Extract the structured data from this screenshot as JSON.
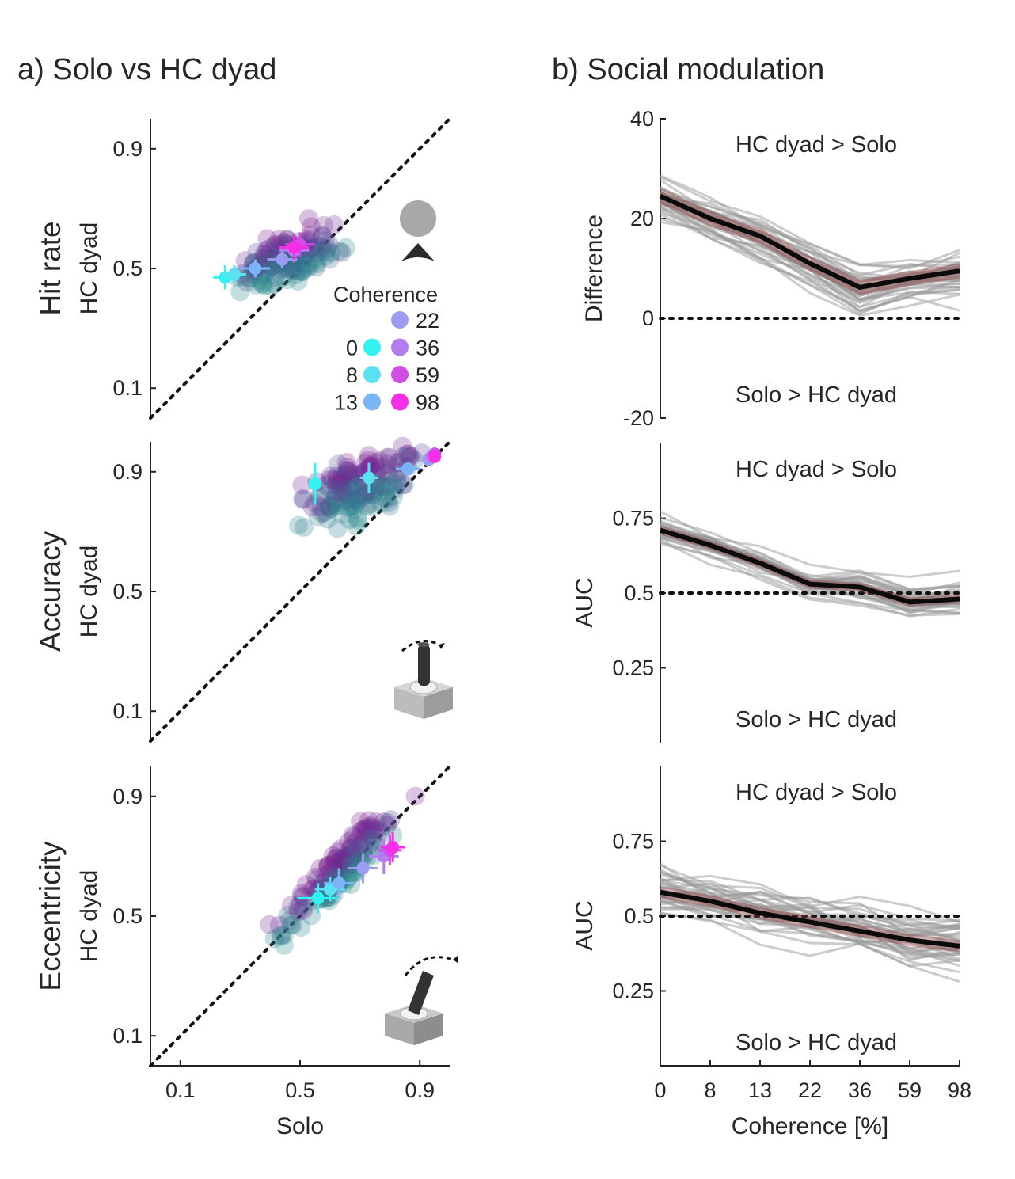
{
  "panels": {
    "a_title": "a) Solo vs HC dyad",
    "b_title": "b) Social modulation"
  },
  "scatter_common": {
    "ticks": [
      "0.1",
      "0.5",
      "0.9"
    ],
    "tick_values": [
      0.1,
      0.5,
      0.9
    ],
    "lim": [
      0,
      1
    ],
    "xlabel": "Solo",
    "ylabel_sub": "HC dyad",
    "legend_title": "Coherence",
    "legend_items": [
      {
        "label": "0",
        "color": "#33f2f2"
      },
      {
        "label": "8",
        "color": "#5ae2f2"
      },
      {
        "label": "13",
        "color": "#7ab4f7"
      },
      {
        "label": "22",
        "color": "#9b9bf0"
      },
      {
        "label": "36",
        "color": "#b47cf0"
      },
      {
        "label": "59",
        "color": "#d24ce6"
      },
      {
        "label": "98",
        "color": "#f72ee8"
      }
    ]
  },
  "line_common": {
    "x_categories": [
      "0",
      "8",
      "13",
      "22",
      "36",
      "59",
      "98"
    ],
    "xlabel": "Coherence [%]",
    "upper_label": "HC dyad > Solo",
    "lower_label": "Solo > HC dyad"
  },
  "chart_data": [
    {
      "type": "scatter",
      "row_label": "Hit rate",
      "xlabel": "Solo",
      "ylabel": "HC dyad",
      "xlim": [
        0,
        1
      ],
      "ylim": [
        0,
        1
      ],
      "identity_line": true,
      "cloud": {
        "cx": 0.46,
        "cy": 0.54,
        "spread_x": 0.19,
        "slope": 0.35,
        "noise": 0.06
      },
      "series": [
        {
          "name": "0",
          "x": 0.25,
          "y": 0.47,
          "xerr": 0.04,
          "yerr": 0.04
        },
        {
          "name": "8",
          "x": 0.28,
          "y": 0.48,
          "xerr": 0.04,
          "yerr": 0.03
        },
        {
          "name": "13",
          "x": 0.35,
          "y": 0.5,
          "xerr": 0.05,
          "yerr": 0.03
        },
        {
          "name": "22",
          "x": 0.44,
          "y": 0.53,
          "xerr": 0.05,
          "yerr": 0.03
        },
        {
          "name": "36",
          "x": 0.48,
          "y": 0.56,
          "xerr": 0.05,
          "yerr": 0.04
        },
        {
          "name": "59",
          "x": 0.5,
          "y": 0.58,
          "xerr": 0.05,
          "yerr": 0.04
        },
        {
          "name": "98",
          "x": 0.48,
          "y": 0.57,
          "xerr": 0.05,
          "yerr": 0.04
        }
      ]
    },
    {
      "type": "scatter",
      "row_label": "Accuracy",
      "xlabel": "Solo",
      "ylabel": "HC dyad",
      "xlim": [
        0,
        1
      ],
      "ylim": [
        0,
        1
      ],
      "identity_line": true,
      "cloud": {
        "cx": 0.7,
        "cy": 0.85,
        "spread_x": 0.22,
        "slope": 0.25,
        "noise": 0.09
      },
      "series": [
        {
          "name": "0",
          "x": 0.55,
          "y": 0.86,
          "xerr": 0.02,
          "yerr": 0.07
        },
        {
          "name": "8",
          "x": 0.73,
          "y": 0.88,
          "xerr": 0.03,
          "yerr": 0.05
        },
        {
          "name": "13",
          "x": 0.86,
          "y": 0.91,
          "xerr": 0.04,
          "yerr": 0.02
        },
        {
          "name": "22",
          "x": 0.93,
          "y": 0.94,
          "xerr": 0.02,
          "yerr": 0.01
        },
        {
          "name": "36",
          "x": 0.94,
          "y": 0.95,
          "xerr": 0.01,
          "yerr": 0.01
        },
        {
          "name": "59",
          "x": 0.95,
          "y": 0.96,
          "xerr": 0.01,
          "yerr": 0.01
        },
        {
          "name": "98",
          "x": 0.95,
          "y": 0.95,
          "xerr": 0.01,
          "yerr": 0.01
        }
      ]
    },
    {
      "type": "scatter",
      "row_label": "Eccentricity",
      "xlabel": "Solo",
      "ylabel": "HC dyad",
      "xlim": [
        0,
        1
      ],
      "ylim": [
        0,
        1
      ],
      "identity_line": true,
      "cloud": {
        "cx": 0.64,
        "cy": 0.66,
        "spread_x": 0.24,
        "slope": 0.95,
        "noise": 0.05
      },
      "series": [
        {
          "name": "0",
          "x": 0.56,
          "y": 0.56,
          "xerr": 0.07,
          "yerr": 0.05
        },
        {
          "name": "8",
          "x": 0.6,
          "y": 0.59,
          "xerr": 0.05,
          "yerr": 0.04
        },
        {
          "name": "13",
          "x": 0.63,
          "y": 0.61,
          "xerr": 0.05,
          "yerr": 0.05
        },
        {
          "name": "22",
          "x": 0.71,
          "y": 0.66,
          "xerr": 0.05,
          "yerr": 0.05
        },
        {
          "name": "36",
          "x": 0.78,
          "y": 0.7,
          "xerr": 0.05,
          "yerr": 0.06
        },
        {
          "name": "59",
          "x": 0.8,
          "y": 0.72,
          "xerr": 0.04,
          "yerr": 0.05
        },
        {
          "name": "98",
          "x": 0.81,
          "y": 0.73,
          "xerr": 0.04,
          "yerr": 0.05
        }
      ]
    },
    {
      "type": "line",
      "ylabel": "Difference",
      "categories": [
        "0",
        "8",
        "13",
        "22",
        "36",
        "59",
        "98"
      ],
      "yticks": [
        "-20",
        "0",
        "20",
        "40"
      ],
      "ytick_values": [
        -20,
        0,
        20,
        40
      ],
      "ylim": [
        -20,
        40
      ],
      "reference": 0,
      "mean": [
        24.5,
        20,
        16.5,
        11,
        6.2,
        8,
        9.5
      ],
      "sem": [
        1.5,
        1.5,
        1.5,
        1.5,
        1.5,
        1.5,
        1.5
      ],
      "individual_spread": 6
    },
    {
      "type": "line",
      "ylabel": "AUC",
      "categories": [
        "0",
        "8",
        "13",
        "22",
        "36",
        "59",
        "98"
      ],
      "yticks": [
        "0.25",
        "0.5",
        "0.75"
      ],
      "ytick_values": [
        0.25,
        0.5,
        0.75
      ],
      "ylim": [
        0,
        1
      ],
      "reference": 0.5,
      "mean": [
        0.71,
        0.66,
        0.6,
        0.53,
        0.52,
        0.47,
        0.48
      ],
      "sem": [
        0.015,
        0.015,
        0.015,
        0.015,
        0.015,
        0.015,
        0.015
      ],
      "individual_spread": 0.07
    },
    {
      "type": "line",
      "ylabel": "AUC",
      "categories": [
        "0",
        "8",
        "13",
        "22",
        "36",
        "59",
        "98"
      ],
      "yticks": [
        "0.25",
        "0.5",
        "0.75"
      ],
      "ytick_values": [
        0.25,
        0.5,
        0.75
      ],
      "ylim": [
        0,
        1
      ],
      "reference": 0.5,
      "mean": [
        0.58,
        0.55,
        0.51,
        0.48,
        0.45,
        0.42,
        0.4
      ],
      "sem": [
        0.02,
        0.02,
        0.02,
        0.02,
        0.02,
        0.02,
        0.02
      ],
      "individual_spread": 0.13
    }
  ]
}
